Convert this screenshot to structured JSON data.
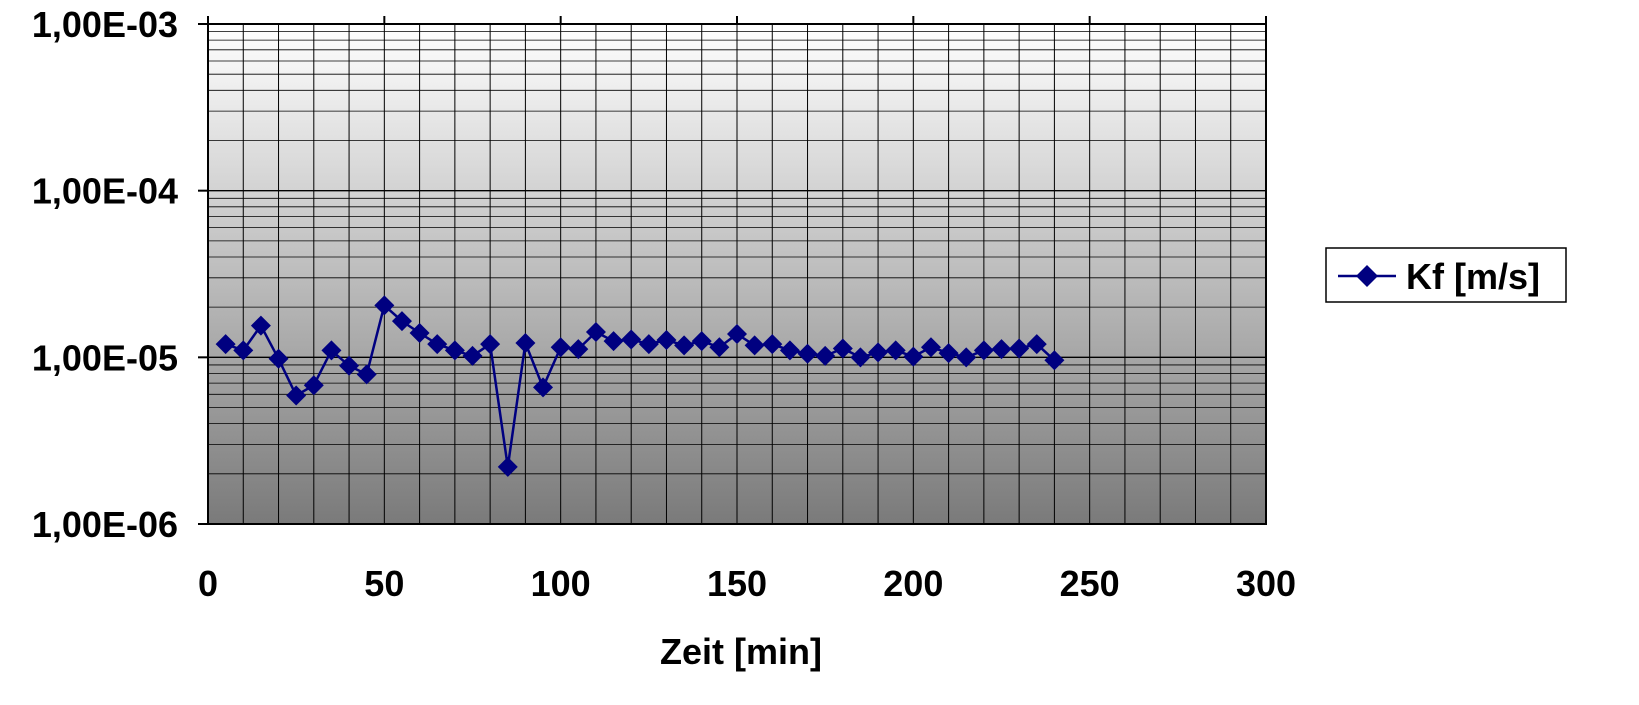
{
  "chart_data": {
    "type": "line",
    "title": "",
    "xlabel": "Zeit [min]",
    "ylabel": "",
    "xlim": [
      0,
      300
    ],
    "ylim": [
      1e-06,
      0.001
    ],
    "y_scale": "log",
    "grid": true,
    "legend_position": "right",
    "x_tick_labels": [
      "0",
      "50",
      "100",
      "150",
      "200",
      "250",
      "300"
    ],
    "y_tick_labels": [
      "1,00E-03",
      "1,00E-04",
      "1,00E-05",
      "1,00E-06"
    ],
    "series": [
      {
        "name": "Kf [m/s]",
        "color": "#000080",
        "marker": "diamond",
        "x": [
          5,
          10,
          15,
          20,
          25,
          30,
          35,
          40,
          45,
          50,
          55,
          60,
          65,
          70,
          75,
          80,
          85,
          90,
          95,
          100,
          105,
          110,
          115,
          120,
          125,
          130,
          135,
          140,
          145,
          150,
          155,
          160,
          165,
          170,
          175,
          180,
          185,
          190,
          195,
          200,
          205,
          210,
          215,
          220,
          225,
          230,
          235,
          240
        ],
        "y": [
          1.2e-05,
          1.1e-05,
          1.55e-05,
          9.8e-06,
          5.9e-06,
          6.8e-06,
          1.1e-05,
          8.9e-06,
          7.9e-06,
          2.05e-05,
          1.65e-05,
          1.4e-05,
          1.2e-05,
          1.1e-05,
          1.02e-05,
          1.2e-05,
          2.2e-06,
          1.22e-05,
          6.6e-06,
          1.15e-05,
          1.12e-05,
          1.42e-05,
          1.25e-05,
          1.28e-05,
          1.2e-05,
          1.27e-05,
          1.18e-05,
          1.25e-05,
          1.15e-05,
          1.38e-05,
          1.18e-05,
          1.2e-05,
          1.1e-05,
          1.05e-05,
          1.02e-05,
          1.13e-05,
          1e-05,
          1.07e-05,
          1.1e-05,
          1.01e-05,
          1.15e-05,
          1.06e-05,
          1e-05,
          1.1e-05,
          1.12e-05,
          1.13e-05,
          1.2e-05,
          9.6e-06
        ]
      }
    ]
  }
}
